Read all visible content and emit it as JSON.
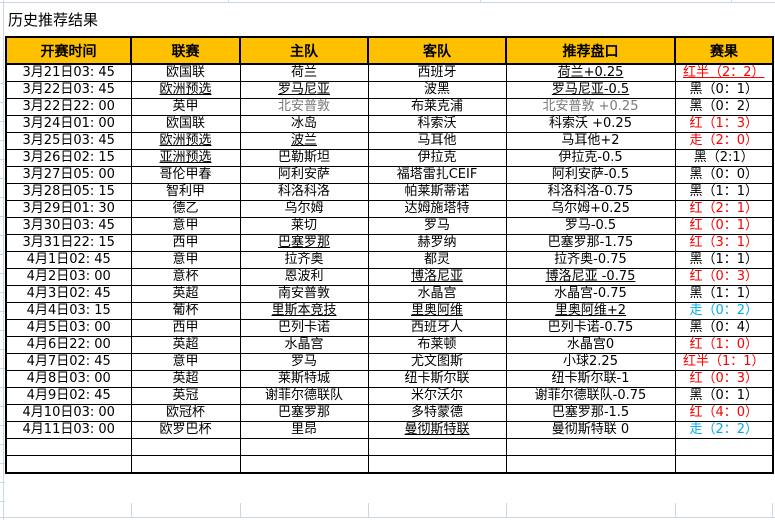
{
  "title": "历史推荐结果",
  "colors": {
    "header_bg": "#FFC000",
    "result_red": "#FF0000",
    "result_black": "#000000",
    "result_cyan": "#00AEEF",
    "gridline_blue": "#C9D7E8",
    "cell_border": "#000000"
  },
  "table": {
    "headers": [
      "开赛时间",
      "联赛",
      "主队",
      "客队",
      "推荐盘口",
      "赛果"
    ],
    "empty_rows": 2,
    "rows": [
      {
        "time": "3月21日03: 45",
        "league": "欧国联",
        "home": "荷兰",
        "away": "西班牙",
        "handicap": "荷兰+0.25",
        "result": "红半（2：2）",
        "result_color": "red",
        "underline": [
          "handicap",
          "result"
        ],
        "muted": []
      },
      {
        "time": "3月22日03: 45",
        "league": "欧洲预选",
        "home": "罗马尼亚",
        "away": "波黑",
        "handicap": "罗马尼亚-0.5",
        "result": "黑（0：1）",
        "result_color": "black",
        "underline": [
          "league",
          "home",
          "handicap"
        ],
        "muted": []
      },
      {
        "time": "3月22日22: 00",
        "league": "英甲",
        "home": "北安普敦",
        "away": "布莱克浦",
        "handicap": "北安普敦 +0.25",
        "result": "黑（0：2）",
        "result_color": "black",
        "underline": [],
        "muted": [
          "home",
          "handicap"
        ]
      },
      {
        "time": "3月24日01: 00",
        "league": "欧国联",
        "home": "冰岛",
        "away": "科索沃",
        "handicap": "科索沃 +0.25",
        "result": "红（1：3）",
        "result_color": "red",
        "underline": [],
        "muted": []
      },
      {
        "time": "3月25日03: 45",
        "league": "欧洲预选",
        "home": "波兰",
        "away": "马耳他",
        "handicap": "马耳他+2",
        "result": "走（2：0）",
        "result_color": "red",
        "underline": [
          "league",
          "home"
        ],
        "muted": []
      },
      {
        "time": "3月26日02: 15",
        "league": "亚洲预选",
        "home": "巴勒斯坦",
        "away": "伊拉克",
        "handicap": "伊拉克-0.5",
        "result": "黑（2:1）",
        "result_color": "black",
        "underline": [
          "league"
        ],
        "muted": []
      },
      {
        "time": "3月27日05: 00",
        "league": "哥伦甲春",
        "home": "阿利安萨",
        "away": "福塔雷扎CEIF",
        "handicap": "阿利安萨-0.5",
        "result": "黑（0：0）",
        "result_color": "black",
        "underline": [],
        "muted": []
      },
      {
        "time": "3月28日05: 15",
        "league": "智利甲",
        "home": "科洛科洛",
        "away": "帕莱斯蒂诺",
        "handicap": "科洛科洛-0.75",
        "result": "黑（1：1）",
        "result_color": "black",
        "underline": [],
        "muted": []
      },
      {
        "time": "3月29日01: 30",
        "league": "德乙",
        "home": "乌尔姆",
        "away": "达姆施塔特",
        "handicap": "乌尔姆+0.25",
        "result": "红（2：1）",
        "result_color": "red",
        "underline": [],
        "muted": []
      },
      {
        "time": "3月30日03: 45",
        "league": "意甲",
        "home": "莱切",
        "away": "罗马",
        "handicap": "罗马-0.5",
        "result": "红（0：1）",
        "result_color": "red",
        "underline": [],
        "muted": []
      },
      {
        "time": "3月31日22: 15",
        "league": "西甲",
        "home": "巴塞罗那",
        "away": "赫罗纳",
        "handicap": "巴塞罗那-1.75",
        "result": "红（3：1）",
        "result_color": "red",
        "underline": [
          "home"
        ],
        "muted": []
      },
      {
        "time": "4月1日02: 45",
        "league": "意甲",
        "home": "拉齐奥",
        "away": "都灵",
        "handicap": "拉齐奥-0.75",
        "result": "黑（1：1）",
        "result_color": "black",
        "underline": [],
        "muted": []
      },
      {
        "time": "4月2日03: 00",
        "league": "意杯",
        "home": "恩波利",
        "away": "博洛尼亚",
        "handicap": "博洛尼亚 -0.75",
        "result": "红（0：3）",
        "result_color": "red",
        "underline": [
          "away",
          "handicap"
        ],
        "muted": []
      },
      {
        "time": "4月3日02: 45",
        "league": "英超",
        "home": "南安普敦",
        "away": "水晶宫",
        "handicap": "水晶宫-0.75",
        "result": "黑（1：1）",
        "result_color": "black",
        "underline": [],
        "muted": []
      },
      {
        "time": "4月4日03: 15",
        "league": "葡杯",
        "home": "里斯本竞技",
        "away": "里奥阿维",
        "handicap": "里奥阿维+2",
        "result": "走（0：2）",
        "result_color": "cyan",
        "underline": [
          "home",
          "away",
          "handicap"
        ],
        "muted": []
      },
      {
        "time": "4月5日03: 00",
        "league": "西甲",
        "home": "巴列卡诺",
        "away": "西班牙人",
        "handicap": "巴列卡诺-0.75",
        "result": "黑（0：4）",
        "result_color": "black",
        "underline": [],
        "muted": []
      },
      {
        "time": "4月6日22: 00",
        "league": "英超",
        "home": "水晶宫",
        "away": "布莱顿",
        "handicap": "水晶宫0",
        "result": "红（1：0）",
        "result_color": "red",
        "underline": [],
        "muted": []
      },
      {
        "time": "4月7日02: 45",
        "league": "意甲",
        "home": "罗马",
        "away": "尤文图斯",
        "handicap": "小球2.25",
        "result": "红半（1：1）",
        "result_color": "red",
        "underline": [],
        "muted": []
      },
      {
        "time": "4月8日03: 00",
        "league": "英超",
        "home": "莱斯特城",
        "away": "纽卡斯尔联",
        "handicap": "纽卡斯尔联-1",
        "result": "红（0：3）",
        "result_color": "red",
        "underline": [],
        "muted": []
      },
      {
        "time": "4月9日02: 45",
        "league": "英冠",
        "home": "谢菲尔德联队",
        "away": "米尔沃尔",
        "handicap": "谢菲尔德联队-0.75",
        "result": "黑（0：1）",
        "result_color": "black",
        "underline": [],
        "muted": []
      },
      {
        "time": "4月10日03: 00",
        "league": "欧冠杯",
        "home": "巴塞罗那",
        "away": "多特蒙德",
        "handicap": "巴塞罗那-1.5",
        "result": "红（4：0）",
        "result_color": "red",
        "underline": [],
        "muted": []
      },
      {
        "time": "4月11日03: 00",
        "league": "欧罗巴杯",
        "home": "里昂",
        "away": "曼彻斯特联",
        "handicap": "曼彻斯特联 0",
        "result": "走（2：2）",
        "result_color": "cyan",
        "underline": [
          "away"
        ],
        "muted": []
      }
    ]
  }
}
